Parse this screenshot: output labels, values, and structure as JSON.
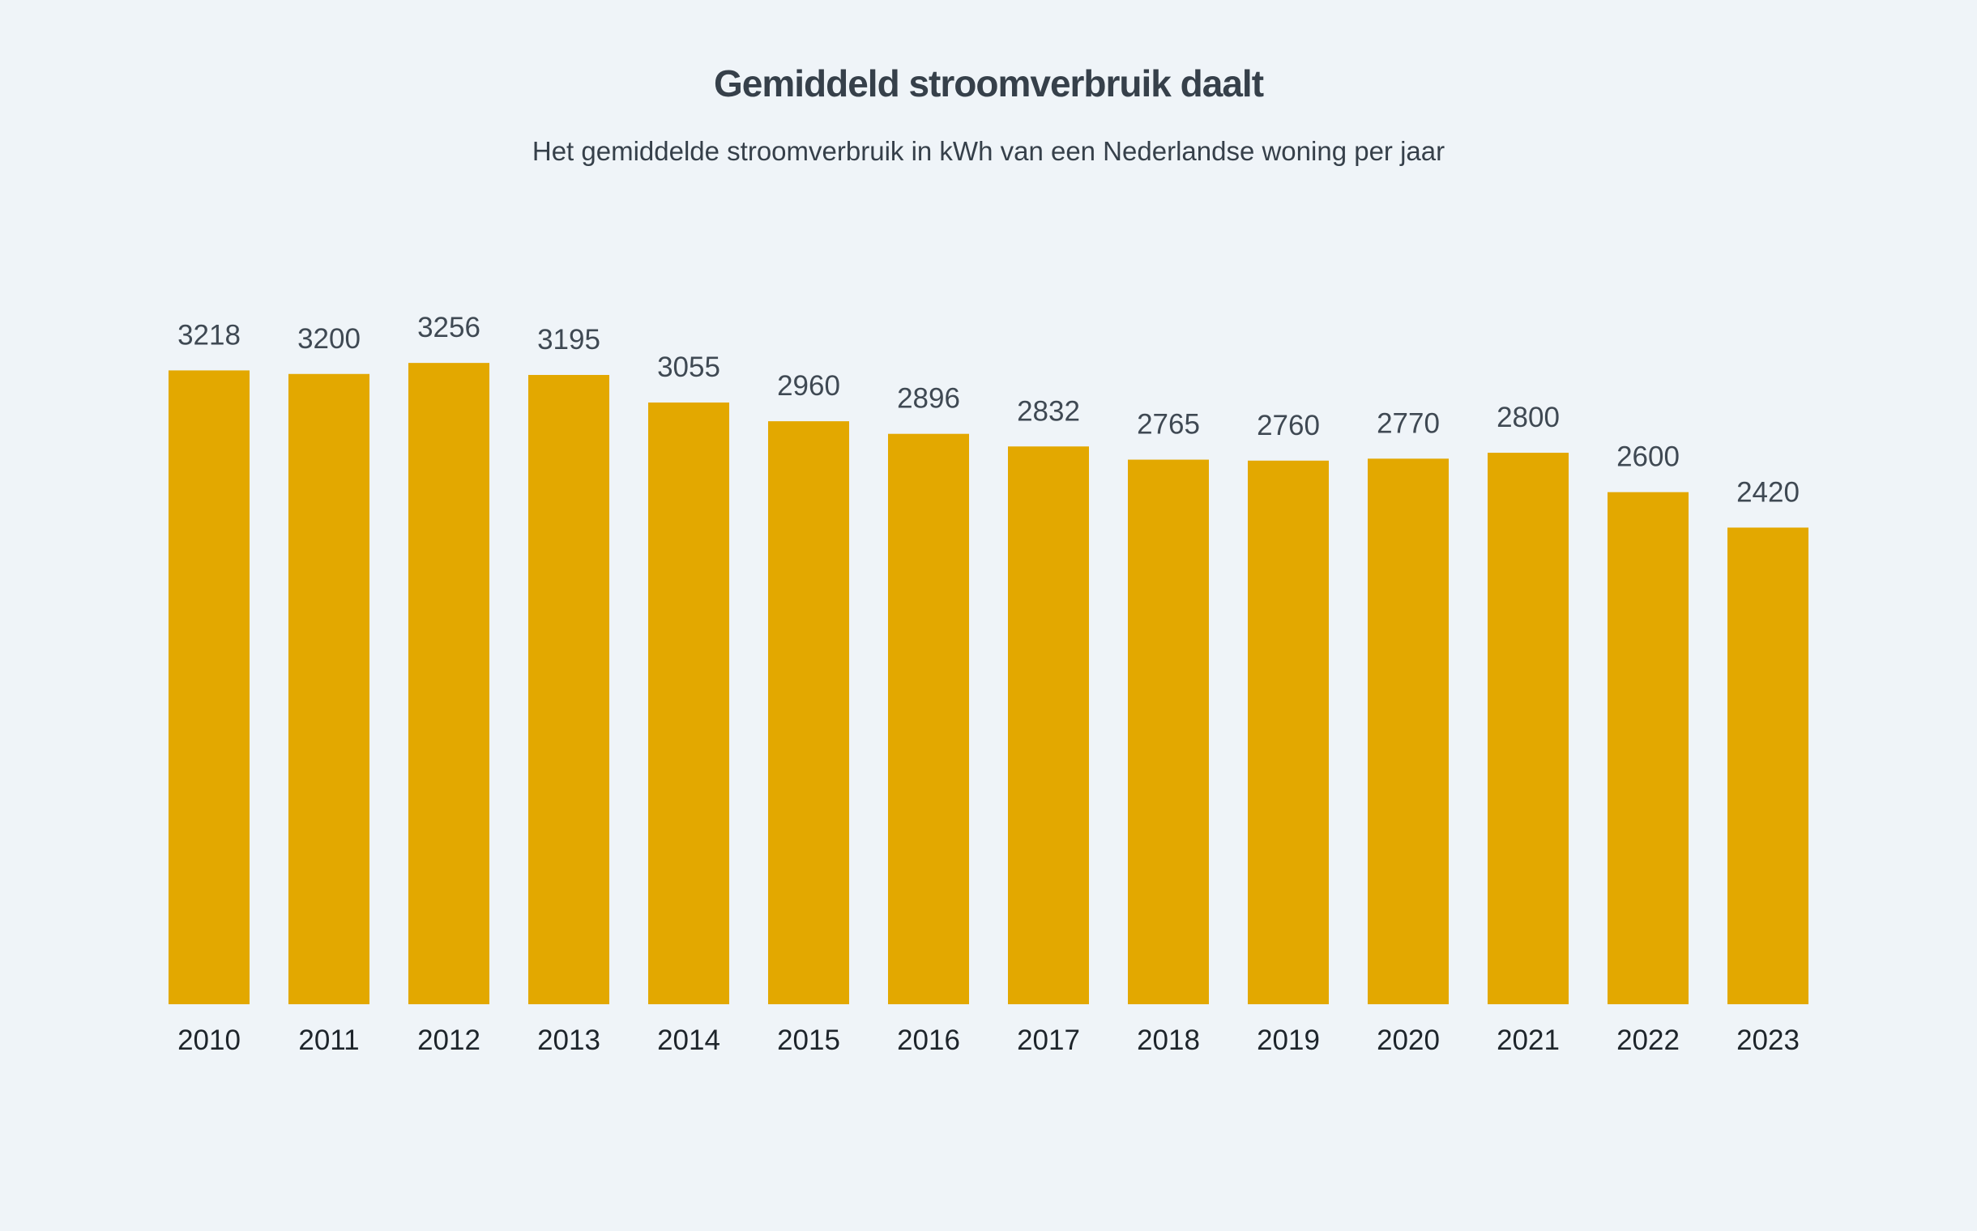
{
  "chart_data": {
    "type": "bar",
    "title": "Gemiddeld stroomverbruik daalt",
    "subtitle": "Het gemiddelde stroomverbruik in kWh van een Nederlandse woning per jaar",
    "categories": [
      "2010",
      "2011",
      "2012",
      "2013",
      "2014",
      "2015",
      "2016",
      "2017",
      "2018",
      "2019",
      "2020",
      "2021",
      "2022",
      "2023"
    ],
    "values": [
      3218,
      3200,
      3256,
      3195,
      3055,
      2960,
      2896,
      2832,
      2765,
      2760,
      2770,
      2800,
      2600,
      2420
    ],
    "xlabel": "",
    "ylabel": "",
    "ylim": [
      0,
      3256
    ],
    "grid": false,
    "bar_color": "#e3a800",
    "background": "#eff4f8"
  }
}
